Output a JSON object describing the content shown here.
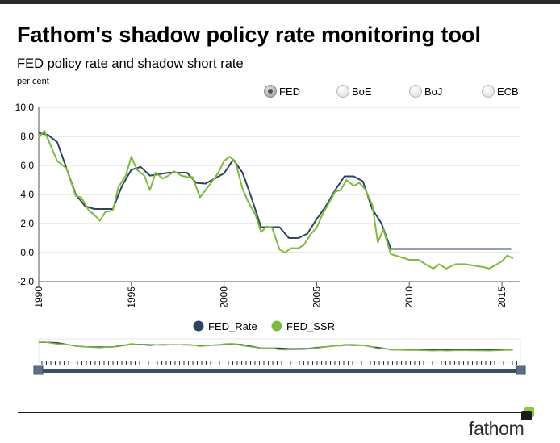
{
  "page": {
    "title": "Fathom's shadow policy rate monitoring tool",
    "subtitle": "FED policy rate and shadow short rate",
    "unit": "per cent",
    "brand": "fathom"
  },
  "selector": {
    "options": [
      {
        "label": "FED",
        "selected": true
      },
      {
        "label": "BoE",
        "selected": false
      },
      {
        "label": "BoJ",
        "selected": false
      },
      {
        "label": "ECB",
        "selected": false
      }
    ]
  },
  "colors": {
    "fed_rate": "#2e4463",
    "fed_ssr": "#7dbb3c",
    "grid": "#d9d9d9",
    "brand_accent": "#8cc63f"
  },
  "chart_data": {
    "type": "line",
    "title": "FED policy rate and shadow short rate",
    "ylabel": "per cent",
    "xlim": [
      1990,
      2016
    ],
    "ylim": [
      -2,
      10
    ],
    "y_ticks": [
      "-2.0",
      "0.0",
      "2.0",
      "4.0",
      "6.0",
      "8.0",
      "10.0"
    ],
    "x_ticks": [
      "1990",
      "1995",
      "2000",
      "2005",
      "2010",
      "2015"
    ],
    "legend_position": "bottom",
    "grid": true,
    "series": [
      {
        "name": "FED_Rate",
        "x": [
          1990.0,
          1990.5,
          1991.0,
          1991.5,
          1992.0,
          1992.5,
          1993.0,
          1993.5,
          1994.0,
          1994.5,
          1995.0,
          1995.5,
          1996.0,
          1997.0,
          1998.0,
          1998.5,
          1999.0,
          1999.5,
          2000.0,
          2000.5,
          2001.0,
          2001.5,
          2002.0,
          2003.0,
          2003.5,
          2004.0,
          2004.5,
          2005.0,
          2005.5,
          2006.0,
          2006.5,
          2007.0,
          2007.5,
          2008.0,
          2008.5,
          2009.0,
          2010.0,
          2011.0,
          2012.0,
          2013.0,
          2014.0,
          2015.0,
          2015.5
        ],
        "values": [
          8.25,
          8.1,
          7.6,
          5.8,
          4.0,
          3.2,
          3.0,
          3.0,
          3.0,
          4.6,
          5.7,
          5.9,
          5.3,
          5.5,
          5.5,
          4.8,
          4.75,
          5.1,
          5.45,
          6.4,
          5.5,
          3.7,
          1.75,
          1.75,
          1.0,
          1.0,
          1.3,
          2.3,
          3.2,
          4.3,
          5.25,
          5.25,
          4.9,
          3.0,
          2.0,
          0.25,
          0.25,
          0.25,
          0.25,
          0.25,
          0.25,
          0.25,
          0.25
        ]
      },
      {
        "name": "FED_SSR",
        "x": [
          1990.0,
          1990.3,
          1990.6,
          1991.0,
          1991.5,
          1992.0,
          1992.3,
          1992.7,
          1993.0,
          1993.3,
          1993.6,
          1994.0,
          1994.3,
          1994.7,
          1995.0,
          1995.3,
          1995.7,
          1996.0,
          1996.3,
          1996.7,
          1997.0,
          1997.3,
          1997.7,
          1998.0,
          1998.3,
          1998.7,
          1999.0,
          1999.3,
          1999.7,
          2000.0,
          2000.3,
          2000.6,
          2001.0,
          2001.3,
          2001.7,
          2002.0,
          2002.3,
          2002.6,
          2003.0,
          2003.3,
          2003.6,
          2004.0,
          2004.3,
          2004.7,
          2005.0,
          2005.3,
          2005.7,
          2006.0,
          2006.3,
          2006.6,
          2007.0,
          2007.3,
          2007.6,
          2008.0,
          2008.3,
          2008.6,
          2009.0,
          2009.5,
          2010.0,
          2010.5,
          2011.0,
          2011.3,
          2011.6,
          2012.0,
          2012.5,
          2013.0,
          2013.5,
          2014.0,
          2014.3,
          2014.6,
          2015.0,
          2015.3,
          2015.6
        ],
        "values": [
          7.9,
          8.4,
          7.5,
          6.3,
          5.8,
          3.9,
          3.8,
          2.9,
          2.6,
          2.2,
          2.8,
          2.9,
          4.5,
          5.3,
          6.6,
          5.7,
          5.3,
          4.3,
          5.5,
          5.1,
          5.3,
          5.6,
          5.3,
          5.2,
          5.2,
          3.8,
          4.3,
          4.8,
          5.5,
          6.3,
          6.6,
          6.3,
          4.4,
          3.5,
          2.6,
          1.4,
          1.8,
          1.7,
          0.2,
          0.0,
          0.3,
          0.3,
          0.5,
          1.3,
          1.7,
          2.6,
          3.5,
          4.2,
          4.3,
          5.0,
          4.6,
          4.8,
          4.4,
          3.3,
          0.7,
          1.6,
          -0.1,
          -0.3,
          -0.5,
          -0.5,
          -0.9,
          -1.1,
          -0.8,
          -1.1,
          -0.8,
          -0.8,
          -0.9,
          -1.0,
          -1.1,
          -0.9,
          -0.6,
          -0.2,
          -0.4
        ]
      }
    ]
  }
}
